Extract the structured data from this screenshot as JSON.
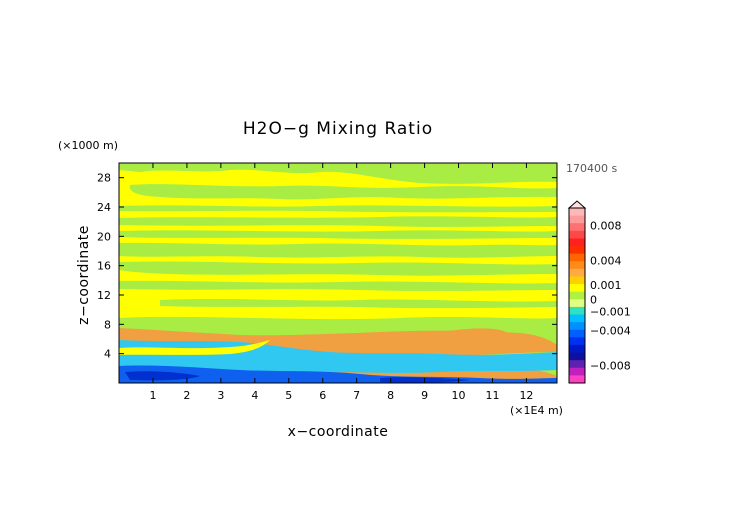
{
  "chart_data": {
    "type": "heatmap",
    "title": "H2O−g Mixing Ratio",
    "xlabel": "x−coordinate",
    "ylabel": "z−coordinate",
    "x_unit_label": "(×1E4 m)",
    "y_unit_label": "(×1000 m)",
    "time_label": "170400 s",
    "x_ticks": [
      "1",
      "2",
      "3",
      "4",
      "5",
      "6",
      "7",
      "8",
      "9",
      "10",
      "11",
      "12"
    ],
    "y_ticks": [
      "4",
      "8",
      "12",
      "16",
      "20",
      "24",
      "28"
    ],
    "xlim": [
      0,
      12.9
    ],
    "ylim": [
      0,
      30
    ],
    "colorbar": {
      "labels": [
        "0.008",
        "0.004",
        "0.001",
        "0",
        "−0.001",
        "−0.004",
        "−0.008"
      ],
      "levels": [
        0.01,
        0.009,
        0.008,
        0.007,
        0.006,
        0.005,
        0.004,
        0.003,
        0.002,
        0.001,
        0.0005,
        0,
        -0.0005,
        -0.001,
        -0.002,
        -0.003,
        -0.004,
        -0.005,
        -0.006,
        -0.007,
        -0.008,
        -0.009,
        -0.01
      ],
      "colors": [
        "#ffb8b8",
        "#ff9a9a",
        "#ff7070",
        "#ff4848",
        "#ff2020",
        "#ff3000",
        "#ff6600",
        "#ff8c1a",
        "#ffaa44",
        "#ffd000",
        "#ffff00",
        "#b0f040",
        "#e0ff80",
        "#30e0c0",
        "#00c0ff",
        "#0090ff",
        "#0060ff",
        "#0030f0",
        "#0018c8",
        "#1010a0",
        "#6020b0",
        "#c020c0",
        "#ff40c0"
      ]
    },
    "regions": [
      {
        "value": "0 to 0.0005",
        "color": "#ffff00",
        "z": [
          0,
          30
        ]
      },
      {
        "value": "-0.0005 to 0",
        "color": "#a8ec44",
        "z": [
          20,
          29
        ]
      },
      {
        "value": "0.001 to 0.002",
        "color": "#f0a040",
        "z": [
          4,
          7
        ]
      },
      {
        "value": "-0.002 to -0.001",
        "color": "#30c8f0",
        "z": [
          2,
          6
        ]
      },
      {
        "value": "-0.004 to -0.002",
        "color": "#1060f0",
        "z": [
          0,
          3
        ]
      }
    ]
  }
}
